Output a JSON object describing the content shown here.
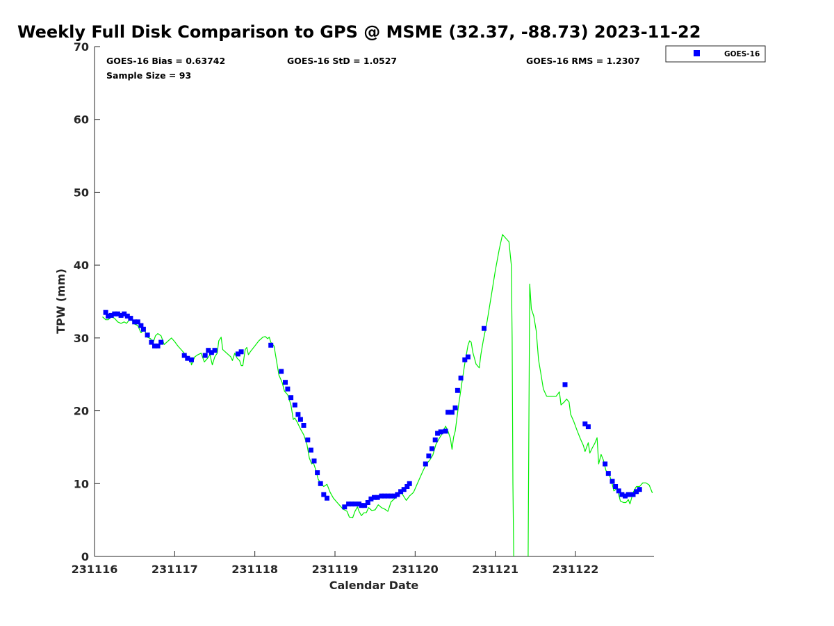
{
  "chart_data": {
    "type": "scatter",
    "title": "Weekly Full Disk Comparison to GPS @ MSME (32.37, -88.73) 2023-11-22",
    "xlabel": "Calendar Date",
    "ylabel": "TPW (mm)",
    "xlim": [
      0,
      6.98
    ],
    "ylim": [
      0,
      70
    ],
    "x_ticks": [
      {
        "value": 0,
        "label": "231116"
      },
      {
        "value": 1,
        "label": "231117"
      },
      {
        "value": 2,
        "label": "231118"
      },
      {
        "value": 3,
        "label": "231119"
      },
      {
        "value": 4,
        "label": "231120"
      },
      {
        "value": 5,
        "label": "231121"
      },
      {
        "value": 6,
        "label": "231122"
      }
    ],
    "y_ticks": [
      0,
      10,
      20,
      30,
      40,
      50,
      60,
      70
    ],
    "grid": false,
    "legend": {
      "position": "outside-top-right",
      "entries": [
        "GOES-16"
      ]
    },
    "stats": {
      "bias": "GOES-16 Bias = 0.63742",
      "std": "GOES-16 StD = 1.0527",
      "rms": "GOES-16 RMS = 1.2307",
      "sample": "Sample Size = 93"
    },
    "series": [
      {
        "name": "GOES-16",
        "style": "markers",
        "color": "#0000ff",
        "points": [
          [
            0.14,
            33.5
          ],
          [
            0.17,
            33.0
          ],
          [
            0.21,
            33.1
          ],
          [
            0.25,
            33.3
          ],
          [
            0.29,
            33.3
          ],
          [
            0.33,
            33.1
          ],
          [
            0.37,
            33.3
          ],
          [
            0.41,
            33.0
          ],
          [
            0.45,
            32.7
          ],
          [
            0.5,
            32.2
          ],
          [
            0.54,
            32.2
          ],
          [
            0.58,
            31.7
          ],
          [
            0.61,
            31.2
          ],
          [
            0.66,
            30.4
          ],
          [
            0.71,
            29.4
          ],
          [
            0.75,
            28.9
          ],
          [
            0.79,
            28.9
          ],
          [
            0.83,
            29.4
          ],
          [
            1.12,
            27.6
          ],
          [
            1.16,
            27.2
          ],
          [
            1.21,
            27.0
          ],
          [
            1.38,
            27.6
          ],
          [
            1.42,
            28.3
          ],
          [
            1.46,
            28.0
          ],
          [
            1.5,
            28.3
          ],
          [
            1.79,
            27.8
          ],
          [
            1.83,
            28.1
          ],
          [
            2.2,
            29.0
          ],
          [
            2.33,
            25.4
          ],
          [
            2.38,
            23.9
          ],
          [
            2.41,
            23.0
          ],
          [
            2.45,
            21.8
          ],
          [
            2.5,
            20.8
          ],
          [
            2.54,
            19.5
          ],
          [
            2.57,
            18.8
          ],
          [
            2.61,
            18.0
          ],
          [
            2.66,
            16.0
          ],
          [
            2.7,
            14.6
          ],
          [
            2.74,
            13.1
          ],
          [
            2.78,
            11.5
          ],
          [
            2.82,
            10.0
          ],
          [
            2.86,
            8.5
          ],
          [
            2.9,
            8.0
          ],
          [
            3.12,
            6.8
          ],
          [
            3.17,
            7.2
          ],
          [
            3.21,
            7.2
          ],
          [
            3.25,
            7.2
          ],
          [
            3.3,
            7.2
          ],
          [
            3.33,
            7.0
          ],
          [
            3.37,
            7.0
          ],
          [
            3.41,
            7.4
          ],
          [
            3.45,
            7.9
          ],
          [
            3.49,
            8.1
          ],
          [
            3.53,
            8.1
          ],
          [
            3.58,
            8.3
          ],
          [
            3.62,
            8.3
          ],
          [
            3.66,
            8.3
          ],
          [
            3.7,
            8.3
          ],
          [
            3.74,
            8.3
          ],
          [
            3.78,
            8.5
          ],
          [
            3.82,
            8.9
          ],
          [
            3.86,
            9.2
          ],
          [
            3.9,
            9.6
          ],
          [
            3.93,
            10.0
          ],
          [
            4.13,
            12.7
          ],
          [
            4.17,
            13.8
          ],
          [
            4.21,
            14.8
          ],
          [
            4.25,
            16.0
          ],
          [
            4.28,
            16.9
          ],
          [
            4.32,
            17.1
          ],
          [
            4.38,
            17.2
          ],
          [
            4.41,
            19.8
          ],
          [
            4.46,
            19.8
          ],
          [
            4.5,
            20.4
          ],
          [
            4.53,
            22.8
          ],
          [
            4.57,
            24.5
          ],
          [
            4.62,
            27.0
          ],
          [
            4.66,
            27.4
          ],
          [
            4.86,
            31.3
          ],
          [
            5.87,
            23.6
          ],
          [
            6.12,
            18.2
          ],
          [
            6.16,
            17.8
          ],
          [
            6.37,
            12.7
          ],
          [
            6.41,
            11.4
          ],
          [
            6.46,
            10.3
          ],
          [
            6.5,
            9.6
          ],
          [
            6.54,
            9.0
          ],
          [
            6.58,
            8.5
          ],
          [
            6.62,
            8.3
          ],
          [
            6.66,
            8.5
          ],
          [
            6.72,
            8.5
          ],
          [
            6.76,
            8.9
          ],
          [
            6.8,
            9.2
          ]
        ]
      },
      {
        "name": "GPS",
        "style": "line",
        "color": "#00ee00",
        "points": [
          [
            0.1,
            32.9
          ],
          [
            0.14,
            32.5
          ],
          [
            0.17,
            32.5
          ],
          [
            0.21,
            32.9
          ],
          [
            0.25,
            32.7
          ],
          [
            0.29,
            32.2
          ],
          [
            0.33,
            32.0
          ],
          [
            0.37,
            32.2
          ],
          [
            0.4,
            32.0
          ],
          [
            0.45,
            32.7
          ],
          [
            0.5,
            31.9
          ],
          [
            0.54,
            31.7
          ],
          [
            0.58,
            30.7
          ],
          [
            0.62,
            31.2
          ],
          [
            0.66,
            30.1
          ],
          [
            0.7,
            29.9
          ],
          [
            0.73,
            29.3
          ],
          [
            0.76,
            30.3
          ],
          [
            0.79,
            30.6
          ],
          [
            0.83,
            30.3
          ],
          [
            0.87,
            29.1
          ],
          [
            0.92,
            29.6
          ],
          [
            0.96,
            30.0
          ],
          [
            1.0,
            29.5
          ],
          [
            1.04,
            28.9
          ],
          [
            1.08,
            28.4
          ],
          [
            1.12,
            27.9
          ],
          [
            1.16,
            27.4
          ],
          [
            1.2,
            26.9
          ],
          [
            1.21,
            26.3
          ],
          [
            1.25,
            27.4
          ],
          [
            1.29,
            27.7
          ],
          [
            1.33,
            27.9
          ],
          [
            1.37,
            26.7
          ],
          [
            1.41,
            27.2
          ],
          [
            1.44,
            27.7
          ],
          [
            1.47,
            26.3
          ],
          [
            1.5,
            27.4
          ],
          [
            1.53,
            27.9
          ],
          [
            1.55,
            29.6
          ],
          [
            1.58,
            30.1
          ],
          [
            1.6,
            28.4
          ],
          [
            1.65,
            27.9
          ],
          [
            1.7,
            27.4
          ],
          [
            1.72,
            26.9
          ],
          [
            1.75,
            27.9
          ],
          [
            1.78,
            27.2
          ],
          [
            1.81,
            26.9
          ],
          [
            1.83,
            26.2
          ],
          [
            1.85,
            26.2
          ],
          [
            1.88,
            28.4
          ],
          [
            1.9,
            28.7
          ],
          [
            1.92,
            27.7
          ],
          [
            1.95,
            28.2
          ],
          [
            2.0,
            28.9
          ],
          [
            2.05,
            29.6
          ],
          [
            2.1,
            30.1
          ],
          [
            2.13,
            30.2
          ],
          [
            2.16,
            29.9
          ],
          [
            2.18,
            30.1
          ],
          [
            2.2,
            29.4
          ],
          [
            2.24,
            28.9
          ],
          [
            2.27,
            26.9
          ],
          [
            2.3,
            24.9
          ],
          [
            2.34,
            23.9
          ],
          [
            2.37,
            22.7
          ],
          [
            2.41,
            22.2
          ],
          [
            2.45,
            20.8
          ],
          [
            2.48,
            18.8
          ],
          [
            2.5,
            19.0
          ],
          [
            2.53,
            18.4
          ],
          [
            2.57,
            17.5
          ],
          [
            2.61,
            16.7
          ],
          [
            2.65,
            15.4
          ],
          [
            2.68,
            13.5
          ],
          [
            2.71,
            12.7
          ],
          [
            2.73,
            12.9
          ],
          [
            2.76,
            11.9
          ],
          [
            2.79,
            10.6
          ],
          [
            2.82,
            10.1
          ],
          [
            2.86,
            9.6
          ],
          [
            2.9,
            9.9
          ],
          [
            2.94,
            8.8
          ],
          [
            2.98,
            8.0
          ],
          [
            3.02,
            7.5
          ],
          [
            3.06,
            7.0
          ],
          [
            3.1,
            6.5
          ],
          [
            3.15,
            6.2
          ],
          [
            3.18,
            5.4
          ],
          [
            3.22,
            5.3
          ],
          [
            3.25,
            6.2
          ],
          [
            3.28,
            6.8
          ],
          [
            3.3,
            6.2
          ],
          [
            3.33,
            5.6
          ],
          [
            3.36,
            6.0
          ],
          [
            3.39,
            6.0
          ],
          [
            3.42,
            6.7
          ],
          [
            3.46,
            6.3
          ],
          [
            3.5,
            6.4
          ],
          [
            3.54,
            7.1
          ],
          [
            3.58,
            6.7
          ],
          [
            3.62,
            6.5
          ],
          [
            3.66,
            6.2
          ],
          [
            3.7,
            7.5
          ],
          [
            3.74,
            7.9
          ],
          [
            3.78,
            8.3
          ],
          [
            3.82,
            8.9
          ],
          [
            3.86,
            8.2
          ],
          [
            3.89,
            7.7
          ],
          [
            3.93,
            8.3
          ],
          [
            3.98,
            8.8
          ],
          [
            4.02,
            9.8
          ],
          [
            4.06,
            10.8
          ],
          [
            4.1,
            11.8
          ],
          [
            4.14,
            12.7
          ],
          [
            4.18,
            13.2
          ],
          [
            4.22,
            13.9
          ],
          [
            4.26,
            15.4
          ],
          [
            4.3,
            16.2
          ],
          [
            4.34,
            16.9
          ],
          [
            4.38,
            17.9
          ],
          [
            4.41,
            17.2
          ],
          [
            4.44,
            16.2
          ],
          [
            4.46,
            14.7
          ],
          [
            4.48,
            16.4
          ],
          [
            4.5,
            17.2
          ],
          [
            4.54,
            20.6
          ],
          [
            4.58,
            23.6
          ],
          [
            4.62,
            26.5
          ],
          [
            4.66,
            29.0
          ],
          [
            4.68,
            29.6
          ],
          [
            4.7,
            29.4
          ],
          [
            4.72,
            28.0
          ],
          [
            4.76,
            26.4
          ],
          [
            4.8,
            25.9
          ],
          [
            4.82,
            27.7
          ],
          [
            4.85,
            29.6
          ],
          [
            4.9,
            32.4
          ],
          [
            4.95,
            35.8
          ],
          [
            5.0,
            39.2
          ],
          [
            5.05,
            42.2
          ],
          [
            5.09,
            44.2
          ],
          [
            5.13,
            43.7
          ],
          [
            5.17,
            43.2
          ],
          [
            5.2,
            40.0
          ],
          [
            5.21,
            30.0
          ],
          [
            5.22,
            10.0
          ],
          [
            5.23,
            0
          ]
        ]
      },
      {
        "name": "GPS",
        "style": "line",
        "color": "#00ee00",
        "points": [
          [
            5.41,
            0
          ],
          [
            5.42,
            20.0
          ],
          [
            5.43,
            37.4
          ],
          [
            5.45,
            34.0
          ],
          [
            5.48,
            33.0
          ],
          [
            5.51,
            31.0
          ],
          [
            5.54,
            27.0
          ],
          [
            5.57,
            25.0
          ],
          [
            5.6,
            23.0
          ],
          [
            5.64,
            22.0
          ],
          [
            5.68,
            22.0
          ],
          [
            5.72,
            22.0
          ],
          [
            5.76,
            22.0
          ],
          [
            5.8,
            22.6
          ],
          [
            5.82,
            20.8
          ],
          [
            5.86,
            21.2
          ],
          [
            5.89,
            21.6
          ],
          [
            5.92,
            21.2
          ],
          [
            5.94,
            19.5
          ],
          [
            5.98,
            18.5
          ],
          [
            6.02,
            17.3
          ],
          [
            6.06,
            16.2
          ],
          [
            6.1,
            15.2
          ],
          [
            6.12,
            14.4
          ],
          [
            6.16,
            15.6
          ],
          [
            6.18,
            14.2
          ],
          [
            6.21,
            14.9
          ],
          [
            6.24,
            15.5
          ],
          [
            6.27,
            16.3
          ],
          [
            6.29,
            12.7
          ],
          [
            6.32,
            14.0
          ],
          [
            6.35,
            13.2
          ],
          [
            6.38,
            11.8
          ],
          [
            6.42,
            11.3
          ],
          [
            6.45,
            10.3
          ],
          [
            6.48,
            9.0
          ],
          [
            6.52,
            9.4
          ],
          [
            6.56,
            7.6
          ],
          [
            6.6,
            7.4
          ],
          [
            6.63,
            7.4
          ],
          [
            6.66,
            7.8
          ],
          [
            6.68,
            7.2
          ],
          [
            6.72,
            8.8
          ],
          [
            6.76,
            9.6
          ],
          [
            6.8,
            9.6
          ],
          [
            6.84,
            10.1
          ],
          [
            6.88,
            10.1
          ],
          [
            6.92,
            9.8
          ],
          [
            6.96,
            8.7
          ]
        ]
      }
    ]
  }
}
